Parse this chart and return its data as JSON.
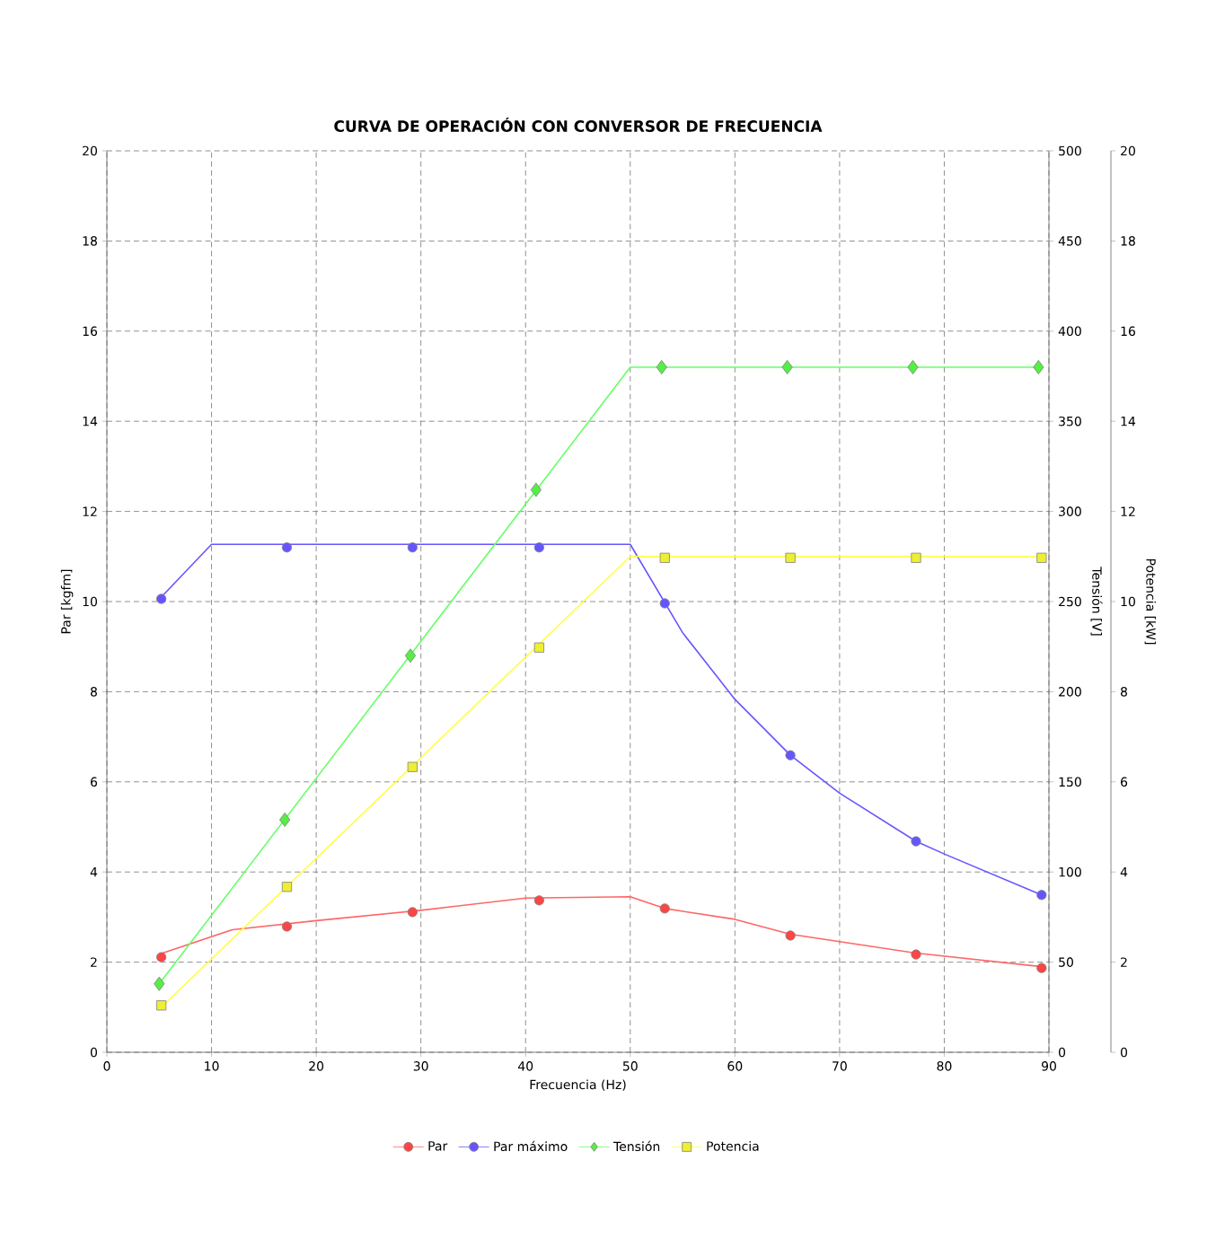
{
  "chart_data": {
    "type": "line",
    "title": "CURVA DE OPERACIÓN CON CONVERSOR DE FRECUENCIA",
    "xlabel": "Frecuencia (Hz)",
    "ylabel": "Par [kgfm]",
    "y2label": "Tensión [V]",
    "y3label": "Potencia [kW]",
    "xlim": [
      0,
      90
    ],
    "xticks": [
      0,
      10,
      20,
      30,
      40,
      50,
      60,
      70,
      80,
      90
    ],
    "ylim": [
      0,
      20
    ],
    "yticks": [
      0,
      2,
      4,
      6,
      8,
      10,
      12,
      14,
      16,
      18,
      20
    ],
    "y2lim": [
      0,
      500
    ],
    "y2ticks": [
      0,
      50,
      100,
      150,
      200,
      250,
      300,
      350,
      400,
      450,
      500
    ],
    "y3lim": [
      0,
      20
    ],
    "y3ticks": [
      0,
      2,
      4,
      6,
      8,
      10,
      12,
      14,
      16,
      18,
      20
    ],
    "grid": true,
    "legend": "bottom",
    "series": [
      {
        "name": "Par",
        "type": "scatter",
        "marker": "circle",
        "color": "#ff4444",
        "x": [
          5.2,
          17.2,
          29.2,
          41.3,
          53.3,
          65.3,
          77.3,
          89.3
        ],
        "values": [
          2.11,
          2.79,
          3.11,
          3.37,
          3.19,
          2.59,
          2.17,
          1.87
        ]
      },
      {
        "name": "Par máximo",
        "type": "scatter",
        "marker": "circle",
        "color": "#6655ff",
        "x": [
          5.2,
          17.2,
          29.2,
          41.3,
          53.3,
          65.3,
          77.3,
          89.3
        ],
        "values": [
          10.06,
          11.2,
          11.2,
          11.2,
          9.96,
          6.59,
          4.68,
          3.49
        ]
      },
      {
        "name": "Tensión",
        "type": "scatter",
        "marker": "diamond",
        "axis": "y2",
        "color": "#55ee44",
        "x": [
          5,
          17,
          29,
          41,
          53,
          65,
          77,
          89
        ],
        "values": [
          38,
          129,
          220,
          312,
          380,
          380,
          380,
          380
        ]
      },
      {
        "name": "Potencia",
        "type": "scatter",
        "marker": "square",
        "axis": "y3",
        "color": "#eeee33",
        "x": [
          5.2,
          17.2,
          29.2,
          41.3,
          53.3,
          65.3,
          77.3,
          89.3
        ],
        "values": [
          1.04,
          3.67,
          6.33,
          8.98,
          10.97,
          10.97,
          10.97,
          10.97
        ]
      },
      {
        "color": "#ff6666",
        "x": [
          5.2,
          12,
          20,
          30,
          40,
          50,
          53.3,
          60,
          65.3,
          77.3,
          89.3
        ],
        "values": [
          2.19,
          2.72,
          2.92,
          3.15,
          3.42,
          3.45,
          3.19,
          2.95,
          2.62,
          2.2,
          1.9
        ]
      },
      {
        "color": "#6655ff",
        "x": [
          5.2,
          10,
          50,
          55,
          60,
          65.3,
          70,
          77.3,
          80,
          89.3
        ],
        "values": [
          10.1,
          11.27,
          11.27,
          9.31,
          7.83,
          6.59,
          5.75,
          4.68,
          4.4,
          3.49
        ]
      },
      {
        "axis": "y2",
        "color": "#66ff66",
        "x": [
          5,
          50,
          89
        ],
        "values": [
          38,
          380,
          380
        ]
      },
      {
        "axis": "y3",
        "color": "#ffff44",
        "x": [
          5.2,
          50,
          89.3
        ],
        "values": [
          1.0,
          11.0,
          11.0
        ]
      }
    ]
  }
}
